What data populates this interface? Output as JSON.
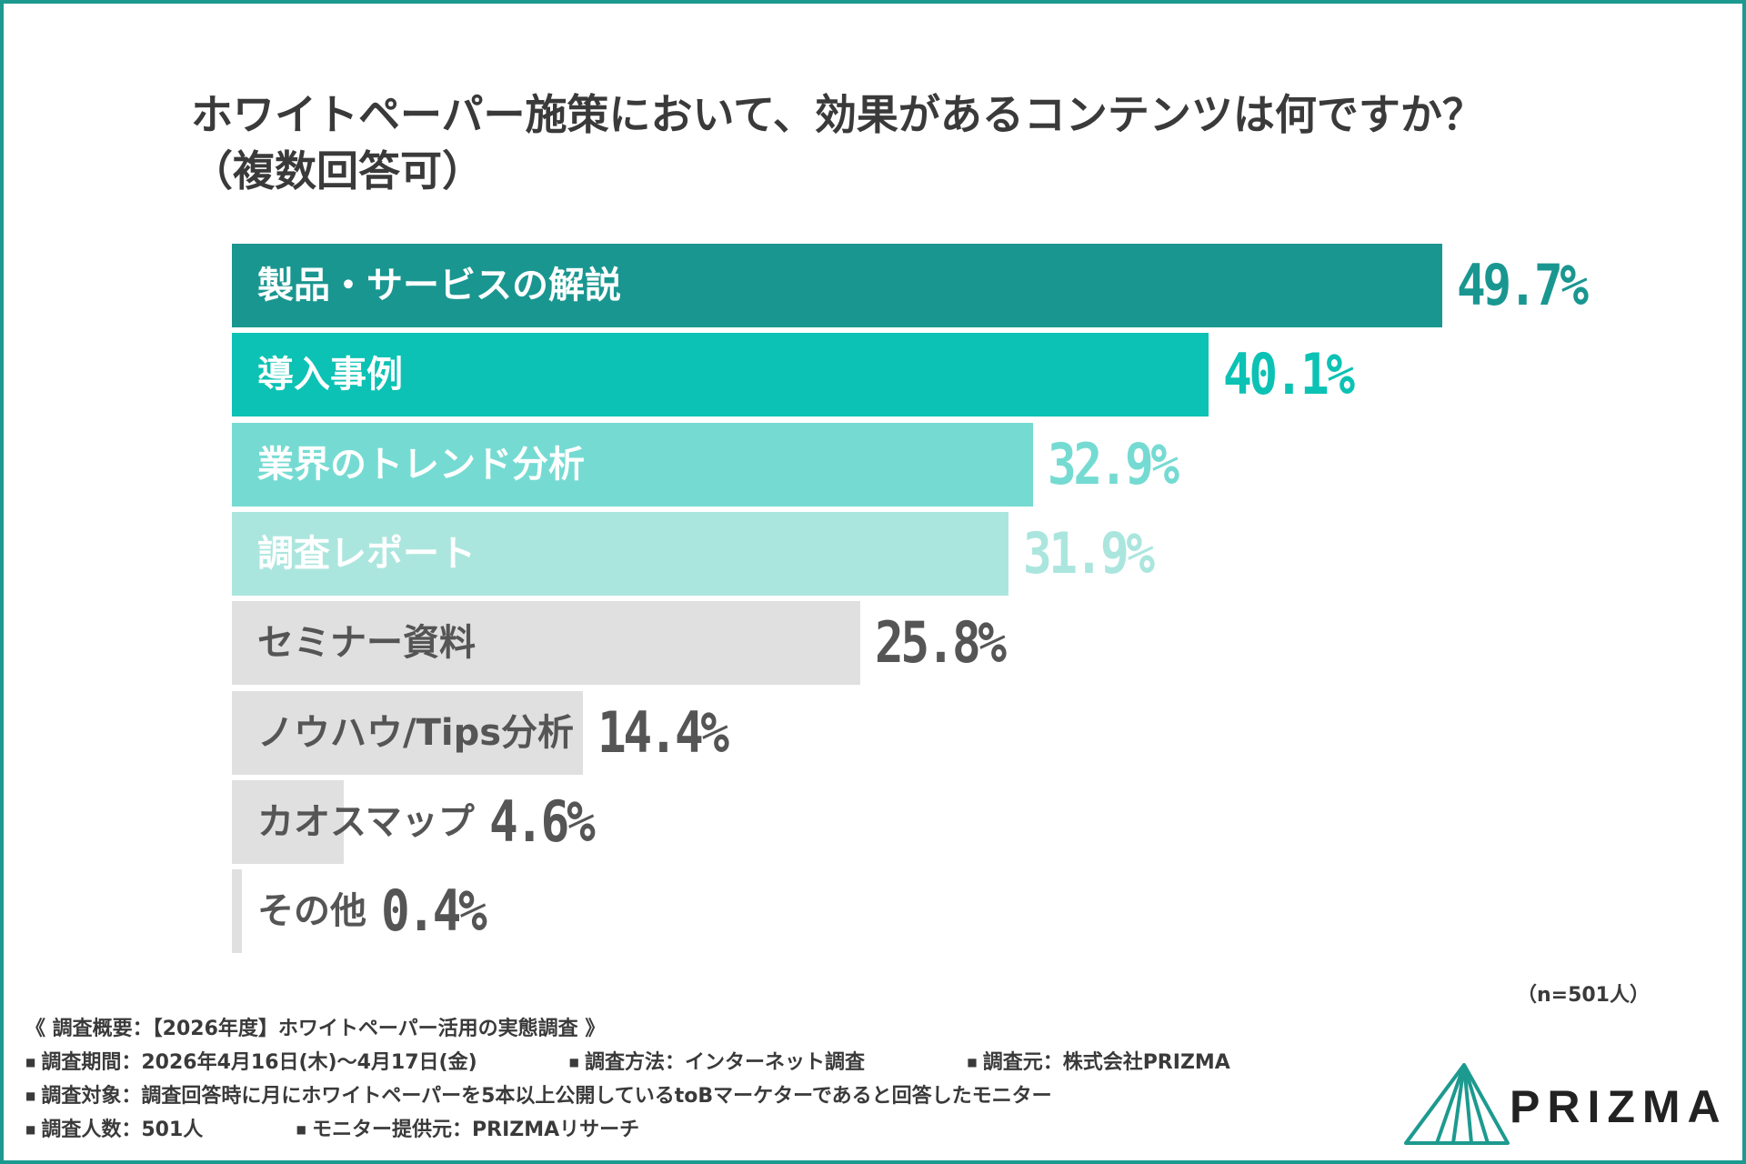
{
  "title_line1": "ホワイトペーパー施策において、効果があるコンテンツは何ですか？",
  "title_line2": "（複数回答可）",
  "chart_data": {
    "type": "bar",
    "orientation": "horizontal",
    "title": "ホワイトペーパー施策において、効果があるコンテンツは何ですか？（複数回答可）",
    "categories": [
      "製品・サービスの解説",
      "導入事例",
      "業界のトレンド分析",
      "調査レポート",
      "セミナー資料",
      "ノウハウ/Tips分析",
      "カオスマップ",
      "その他"
    ],
    "values": [
      49.7,
      40.1,
      32.9,
      31.9,
      25.8,
      14.4,
      4.6,
      0.4
    ],
    "value_labels": [
      "49.7%",
      "40.1%",
      "32.9%",
      "31.9%",
      "25.8%",
      "14.4%",
      "4.6%",
      "0.4%"
    ],
    "unit": "%",
    "xlim": [
      0,
      62
    ],
    "bar_colors": [
      "#1a9690",
      "#0cc2b4",
      "#75dbd2",
      "#abe6de",
      "#e0e0e0",
      "#e0e0e0",
      "#e0e0e0",
      "#e0e0e0"
    ],
    "label_colors": [
      "#ffffff",
      "#ffffff",
      "#ffffff",
      "#ffffff",
      "#555555",
      "#555555",
      "#555555",
      "#555555"
    ],
    "value_colors": [
      "#1a9690",
      "#0cc2b4",
      "#75dbd2",
      "#abe6de",
      "#555555",
      "#555555",
      "#555555",
      "#555555"
    ],
    "n_label": "（n=501人）"
  },
  "survey": {
    "heading": "《 調査概要：【2026年度】ホワイトペーパー活用の実態調査 》",
    "period": "調査期間：2026年4月16日(木)〜4月17日(金)",
    "method": "調査方法：インターネット調査",
    "source": "調査元：株式会社PRIZMA",
    "target": "調査対象：調査回答時に月にホワイトペーパーを5本以上公開しているtoBマーケターであると回答したモニター",
    "count": "調査人数：501人",
    "provider": "モニター提供元：PRIZMAリサーチ",
    "bullet": "■"
  },
  "logo": {
    "text": "PRIZMA",
    "color": "#1d9a8f"
  }
}
